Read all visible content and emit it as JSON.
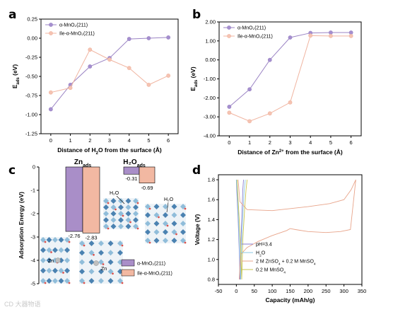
{
  "panels": {
    "a": "a",
    "b": "b",
    "c": "c",
    "d": "d"
  },
  "colors": {
    "alpha": "#9b84c4",
    "alpha_marker": "#a58fcf",
    "ile": "#f0b4a0",
    "ile_marker": "#f5c3b2",
    "bar_alpha": "#a98ec8",
    "bar_ile": "#f2b8a2",
    "d_ph": "#8a7fd0",
    "d_h2o": "#8ecae6",
    "d_zn": "#e8a48a",
    "d_mn": "#c9c44f"
  },
  "watermark": "CD 大器物语",
  "chart_data": [
    {
      "id": "a",
      "type": "line",
      "xlabel": "Distance of H₂O from the surface (Å)",
      "ylabel": "E_ads (eV)",
      "xlim": [
        -0.5,
        6.5
      ],
      "ylim": [
        -1.25,
        0.25
      ],
      "xticks": [
        "0",
        "1",
        "2",
        "3",
        "4",
        "5",
        "6"
      ],
      "yticks": [
        "0.25",
        "0.00",
        "-0.25",
        "-0.50",
        "-0.75",
        "-1.00",
        "-1.25"
      ],
      "legend_position": "top-left",
      "x": [
        0,
        1,
        2,
        3,
        4,
        5,
        6
      ],
      "series": [
        {
          "name": "α-MnO₂(211)",
          "values": [
            -0.93,
            -0.61,
            -0.37,
            -0.26,
            -0.01,
            0.0,
            0.01
          ]
        },
        {
          "name": "Ile-α-MnO₂(211)",
          "values": [
            -0.71,
            -0.65,
            -0.15,
            -0.28,
            -0.39,
            -0.61,
            -0.49
          ]
        }
      ]
    },
    {
      "id": "b",
      "type": "line",
      "xlabel": "Distance of Zn²⁺ from the surface (Å)",
      "ylabel": "E_ads (eV)",
      "xlim": [
        -0.5,
        6.5
      ],
      "ylim": [
        -4.0,
        2.0
      ],
      "xticks": [
        "0",
        "1",
        "2",
        "3",
        "4",
        "5",
        "6"
      ],
      "yticks": [
        "2.00",
        "1.00",
        "0.00",
        "-1.00",
        "-2.00",
        "-3.00",
        "-4.00"
      ],
      "legend_position": "top-left",
      "x": [
        0,
        1,
        2,
        3,
        4,
        5,
        6
      ],
      "series": [
        {
          "name": "α-MnO₂(211)",
          "values": [
            -2.47,
            -1.55,
            0.0,
            1.18,
            1.42,
            1.44,
            1.44
          ]
        },
        {
          "name": "Ile-α-MnO₂(211)",
          "values": [
            -2.78,
            -3.23,
            -2.82,
            -2.24,
            1.28,
            1.26,
            1.26
          ]
        }
      ]
    },
    {
      "id": "c",
      "type": "bar",
      "ylabel": "Adsorption Energy (eV)",
      "ylim": [
        -5,
        0
      ],
      "yticks": [
        "0",
        "-1",
        "-2",
        "-3",
        "-4",
        "-5"
      ],
      "groups": [
        "Zn_ads",
        "H₂O_ads"
      ],
      "series": [
        {
          "name": "α-MnO₂(211)",
          "values": [
            -2.76,
            -0.31
          ]
        },
        {
          "name": "Ile-α-MnO₂(211)",
          "values": [
            -2.83,
            -0.69
          ]
        }
      ],
      "value_labels": [
        "-2.76",
        "-2.83",
        "-0.31",
        "-0.69"
      ],
      "legend_position": "bottom-right",
      "annotations": [
        "H₂O",
        "H₂O",
        "Zn",
        "Zn"
      ]
    },
    {
      "id": "d",
      "type": "line",
      "xlabel": "Capacity (mAh/g)",
      "ylabel": "Voltage (V)",
      "xlim": [
        -50,
        350
      ],
      "ylim": [
        0.75,
        1.85
      ],
      "xticks": [
        "-50",
        "0",
        "50",
        "100",
        "150",
        "200",
        "250",
        "300",
        "350"
      ],
      "yticks": [
        "1.8",
        "1.6",
        "1.4",
        "1.2",
        "1.0",
        "0.8"
      ],
      "legend_position": "bottom-left",
      "series": [
        {
          "name": "pH=3.4",
          "points": [
            [
              0,
              1.8
            ],
            [
              1,
              1.7
            ],
            [
              3,
              1.55
            ],
            [
              5,
              1.4
            ],
            [
              7,
              1.2
            ],
            [
              9,
              1.0
            ],
            [
              10,
              0.8
            ],
            [
              13,
              1.2
            ],
            [
              16,
              1.5
            ],
            [
              18,
              1.7
            ],
            [
              20,
              1.8
            ]
          ]
        },
        {
          "name": "H₂O",
          "points": [
            [
              0,
              1.8
            ],
            [
              2,
              1.7
            ],
            [
              4,
              1.55
            ],
            [
              6,
              1.4
            ],
            [
              8,
              1.2
            ],
            [
              10,
              1.0
            ],
            [
              12,
              0.8
            ],
            [
              15,
              1.2
            ],
            [
              19,
              1.5
            ],
            [
              22,
              1.7
            ],
            [
              25,
              1.8
            ]
          ]
        },
        {
          "name": "2 M ZnSO₄ + 0.2 M MnSO₄",
          "points": [
            [
              5,
              1.8
            ],
            [
              10,
              1.58
            ],
            [
              30,
              1.5
            ],
            [
              100,
              1.49
            ],
            [
              200,
              1.53
            ],
            [
              260,
              1.56
            ],
            [
              300,
              1.6
            ],
            [
              320,
              1.7
            ],
            [
              333,
              1.8
            ],
            [
              318,
              1.3
            ],
            [
              290,
              1.28
            ],
            [
              250,
              1.27
            ],
            [
              200,
              1.28
            ],
            [
              165,
              1.3
            ],
            [
              150,
              1.31
            ],
            [
              140,
              1.29
            ],
            [
              100,
              1.24
            ],
            [
              60,
              1.18
            ],
            [
              30,
              1.12
            ],
            [
              12,
              1.05
            ],
            [
              8,
              0.8
            ]
          ]
        },
        {
          "name": "0.2 M MnSO₄",
          "points": [
            [
              2,
              1.8
            ],
            [
              5,
              1.6
            ],
            [
              8,
              1.4
            ],
            [
              11,
              1.2
            ],
            [
              13,
              1.0
            ],
            [
              15,
              0.8
            ],
            [
              18,
              1.2
            ],
            [
              23,
              1.5
            ],
            [
              27,
              1.7
            ],
            [
              30,
              1.8
            ]
          ]
        }
      ]
    }
  ],
  "text": {
    "c_title_zn": "Zn",
    "c_title_zn_sub": "ads",
    "c_title_h2o": "H₂O",
    "c_title_h2o_sub": "ads",
    "c_legend_alpha": "α-MnO₂(211)",
    "c_legend_ile": "Ile-α-MnO₂(211)",
    "c_h2o_1": "H₂O",
    "c_h2o_2": "H₂O",
    "c_zn_1": "Zn",
    "c_zn_2": "Zn"
  }
}
